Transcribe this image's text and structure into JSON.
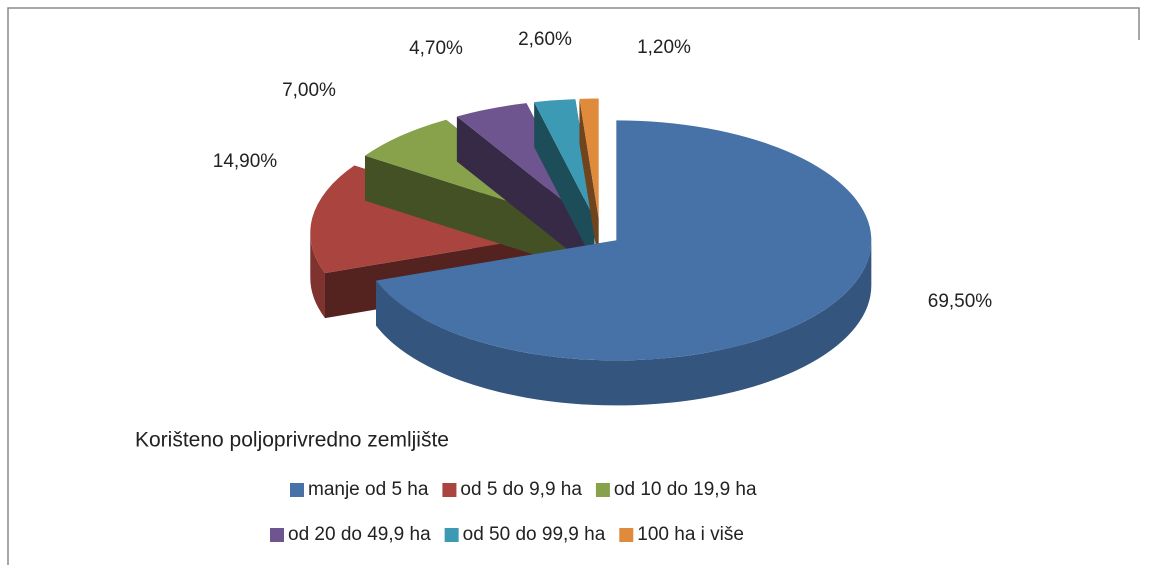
{
  "chart_data": {
    "type": "pie",
    "categories": [
      "manje od 5 ha",
      "od 5 do 9,9 ha",
      "od 10 do 19,9 ha",
      "od 20 do 49,9 ha",
      "od 50 do 99,9 ha",
      "100 ha i više"
    ],
    "values": [
      69.5,
      14.9,
      7.0,
      4.7,
      2.6,
      1.2
    ],
    "value_labels": [
      "69,50%",
      "14,90%",
      "7,00%",
      "4,70%",
      "2,60%",
      "1,20%"
    ],
    "colors": [
      "#4672a8",
      "#a9443f",
      "#87a24a",
      "#6f558f",
      "#3d9ab4",
      "#e08a3c"
    ],
    "legend_title": "Korišteno poljoprivredno zemljište"
  }
}
